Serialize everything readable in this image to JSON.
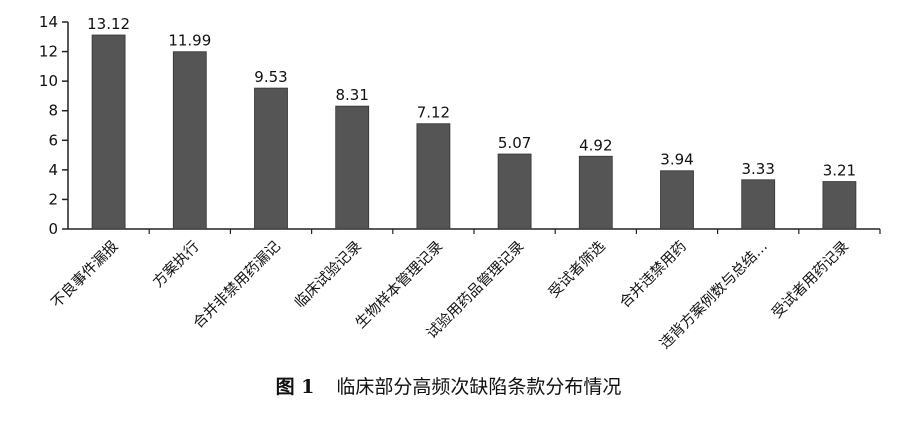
{
  "chart_data": {
    "type": "bar",
    "categories": [
      "不良事件漏报",
      "方案执行",
      "合并非禁用药漏记",
      "临床试验记录",
      "生物样本管理记录",
      "试验用药品管理记录",
      "受试者筛选",
      "合并违禁用药",
      "违背方案例数与总结…",
      "受试者用药记录"
    ],
    "values": [
      13.12,
      11.99,
      9.53,
      8.31,
      7.12,
      5.07,
      4.92,
      3.94,
      3.33,
      3.21
    ],
    "data_labels": [
      "13.12",
      "11.99",
      "9.53",
      "8.31",
      "7.12",
      "5.07",
      "4.92",
      "3.94",
      "3.33",
      "3.21"
    ],
    "title": "",
    "xlabel": "",
    "ylabel": "",
    "ylim": [
      0,
      14
    ],
    "yticks": [
      0,
      2,
      4,
      6,
      8,
      10,
      12,
      14
    ],
    "grid": false,
    "legend": "none",
    "bar_color": "#555555"
  },
  "caption": {
    "figure_number": "图 1",
    "text": "临床部分高频次缺陷条款分布情况"
  }
}
